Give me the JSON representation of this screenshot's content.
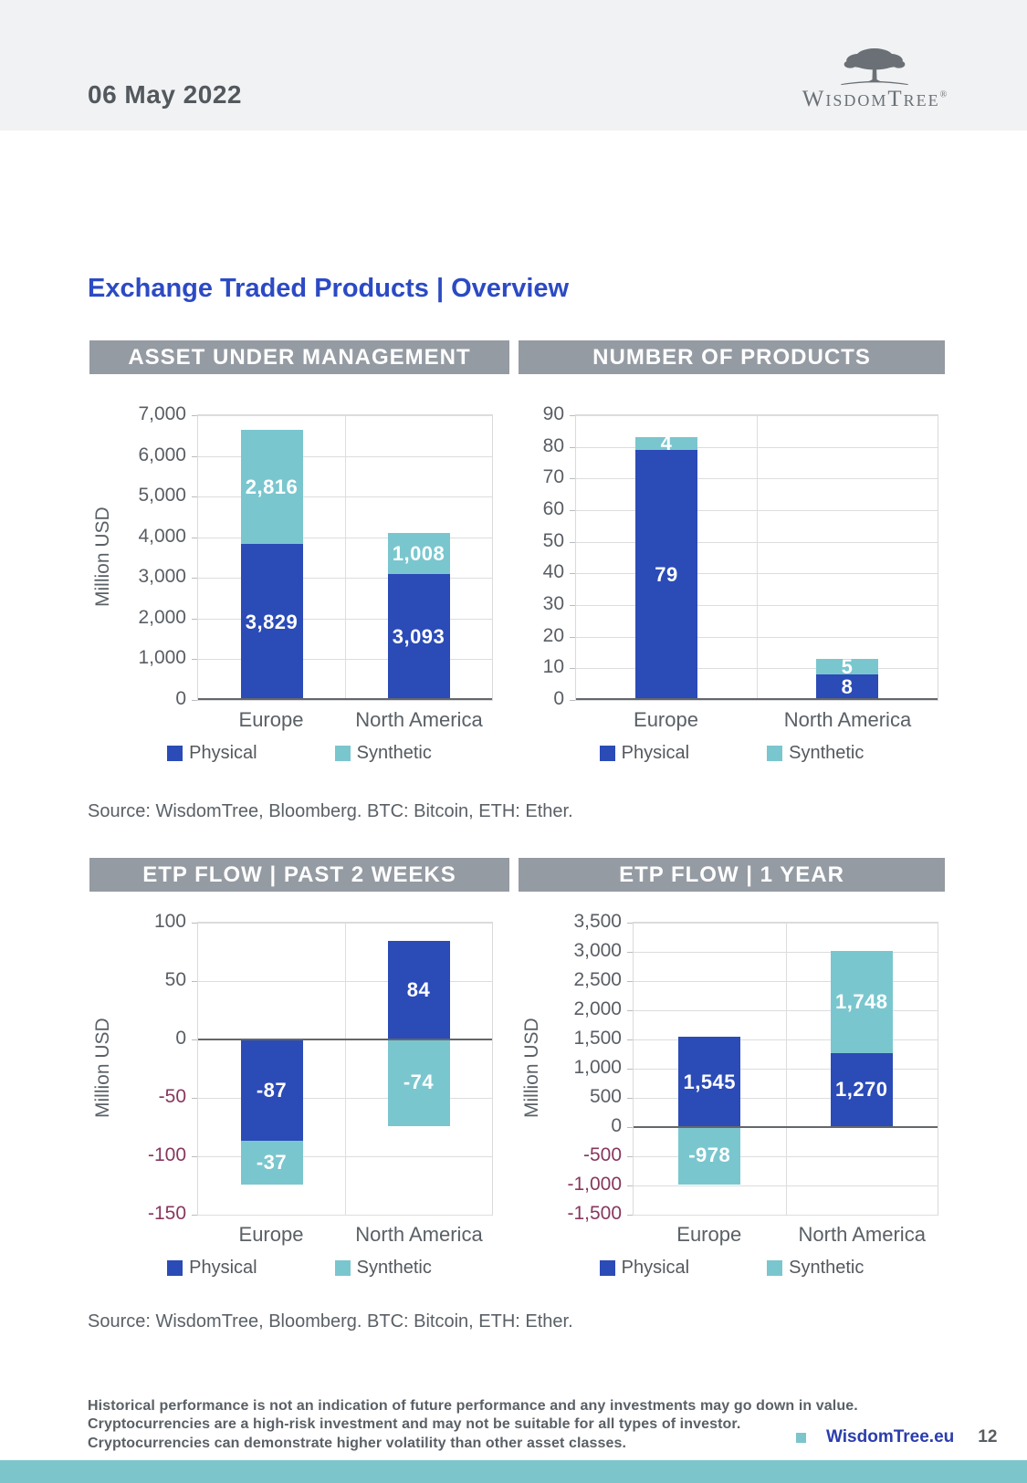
{
  "page": {
    "date": "06 May 2022",
    "title": "Exchange Traded Products | Overview"
  },
  "logo": {
    "name": "WisdomTree",
    "registered_mark": "®",
    "tree_icon": "oak-tree-silhouette"
  },
  "colors": {
    "physical": "#2B4BB7",
    "synthetic": "#7AC6CE",
    "chart_header_bar": "#959BA3",
    "title_blue": "#2C4AC4",
    "negative_tick": "#87375E",
    "axis_text": "#595E64",
    "footer_bar_teal": "#7CC5CB",
    "link_blue": "#2B3DAD"
  },
  "notes": {
    "source_top": "Source: WisdomTree, Bloomberg. BTC: Bitcoin, ETH: Ether.",
    "source_bottom": "Source: WisdomTree, Bloomberg. BTC: Bitcoin, ETH: Ether."
  },
  "footer": {
    "disclaimer_lines": [
      "Historical performance is not an indication of future performance and any investments may go down in value.",
      "Cryptocurrencies are a high-risk investment and may not be suitable for all types of investor.",
      "Cryptocurrencies can demonstrate higher volatility than other asset classes."
    ],
    "bullet_icon": "teal-square",
    "website": "WisdomTree.eu",
    "page_number": "12"
  },
  "chart_data": [
    {
      "type": "bar",
      "stacked": true,
      "title": "ASSET UNDER MANAGEMENT",
      "ylabel": "Million USD",
      "xlabel": "",
      "categories": [
        "Europe",
        "North America"
      ],
      "series": [
        {
          "name": "Physical",
          "color_key": "physical",
          "values": [
            3829,
            3093
          ]
        },
        {
          "name": "Synthetic",
          "color_key": "synthetic",
          "values": [
            2816,
            1008
          ]
        }
      ],
      "ylim": [
        0,
        7000
      ],
      "ytick_step": 1000,
      "grid": true,
      "legend_position": "bottom"
    },
    {
      "type": "bar",
      "stacked": true,
      "title": "NUMBER OF PRODUCTS",
      "ylabel": "",
      "xlabel": "",
      "categories": [
        "Europe",
        "North America"
      ],
      "series": [
        {
          "name": "Physical",
          "color_key": "physical",
          "values": [
            79,
            8
          ]
        },
        {
          "name": "Synthetic",
          "color_key": "synthetic",
          "values": [
            4,
            5
          ]
        }
      ],
      "ylim": [
        0,
        90
      ],
      "ytick_step": 10,
      "grid": true,
      "legend_position": "bottom"
    },
    {
      "type": "bar",
      "stacked": true,
      "title": "ETP FLOW | PAST 2 WEEKS",
      "ylabel": "Million USD",
      "xlabel": "",
      "categories": [
        "Europe",
        "North America"
      ],
      "series": [
        {
          "name": "Physical",
          "color_key": "physical",
          "values": [
            -87,
            84
          ]
        },
        {
          "name": "Synthetic",
          "color_key": "synthetic",
          "values": [
            -37,
            -74
          ]
        }
      ],
      "ylim": [
        -150,
        100
      ],
      "ytick_step": 50,
      "grid": true,
      "legend_position": "bottom"
    },
    {
      "type": "bar",
      "stacked": true,
      "title": "ETP FLOW | 1 YEAR",
      "ylabel": "Million USD",
      "xlabel": "",
      "categories": [
        "Europe",
        "North America"
      ],
      "series": [
        {
          "name": "Physical",
          "color_key": "physical",
          "values": [
            1545,
            1270
          ]
        },
        {
          "name": "Synthetic",
          "color_key": "synthetic",
          "values": [
            -978,
            1748
          ]
        }
      ],
      "ylim": [
        -1500,
        3500
      ],
      "ytick_step": 500,
      "grid": true,
      "legend_position": "bottom"
    }
  ]
}
